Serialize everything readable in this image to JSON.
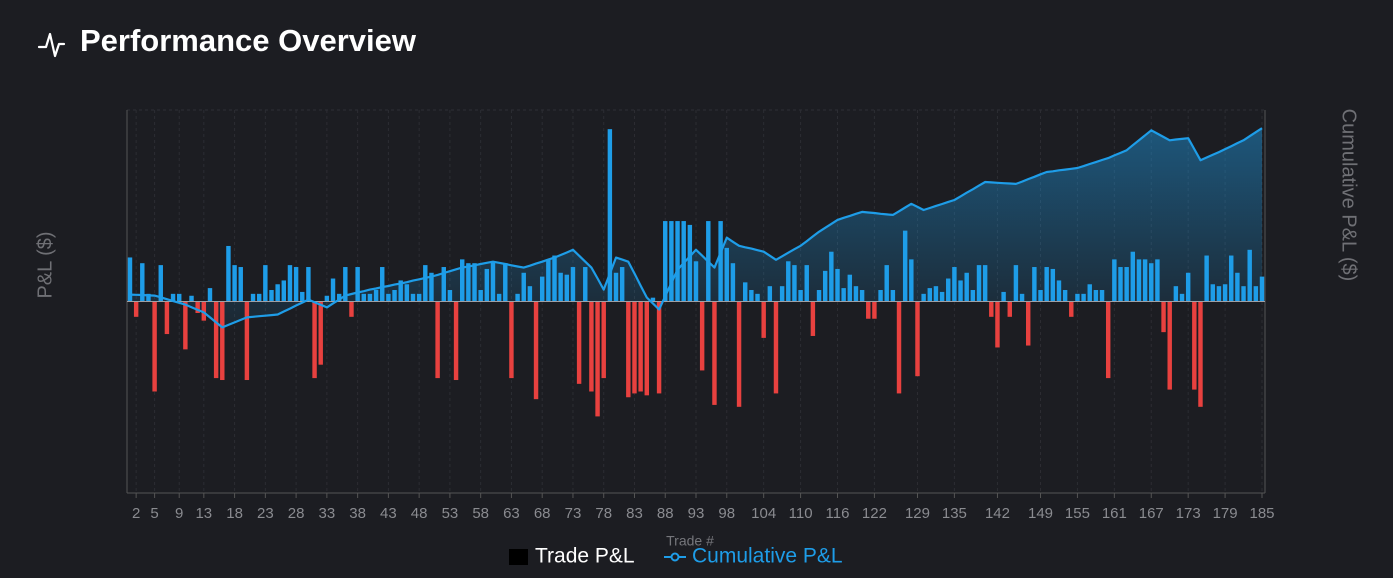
{
  "chart_data": {
    "type": "bar",
    "title": "Performance Overview",
    "x_label": "Trade #",
    "y_label": "P&L ($)",
    "y2_label": "Cumulative P&L ($)",
    "xlim": [
      1,
      185
    ],
    "xticks": [
      2,
      5,
      9,
      13,
      18,
      23,
      28,
      33,
      38,
      43,
      48,
      53,
      58,
      63,
      68,
      73,
      78,
      83,
      88,
      93,
      98,
      104,
      110,
      116,
      122,
      129,
      135,
      142,
      149,
      155,
      161,
      167,
      173,
      179,
      185
    ],
    "ylim": [
      -100,
      100
    ],
    "y2lim": [
      -1000,
      1000
    ],
    "grid": true,
    "x": [
      1,
      2,
      3,
      4,
      5,
      6,
      7,
      8,
      9,
      10,
      11,
      12,
      13,
      14,
      15,
      16,
      17,
      18,
      19,
      20,
      21,
      22,
      23,
      24,
      25,
      26,
      27,
      28,
      29,
      30,
      31,
      32,
      33,
      34,
      35,
      36,
      37,
      38,
      39,
      40,
      41,
      42,
      43,
      44,
      45,
      46,
      47,
      48,
      49,
      50,
      51,
      52,
      53,
      54,
      55,
      56,
      57,
      58,
      59,
      60,
      61,
      62,
      63,
      64,
      65,
      66,
      67,
      68,
      69,
      70,
      71,
      72,
      73,
      74,
      75,
      76,
      77,
      78,
      79,
      80,
      81,
      82,
      83,
      84,
      85,
      86,
      87,
      88,
      89,
      90,
      91,
      92,
      93,
      94,
      95,
      96,
      97,
      98,
      99,
      100,
      101,
      102,
      103,
      104,
      105,
      106,
      107,
      108,
      109,
      110,
      111,
      112,
      113,
      114,
      115,
      116,
      117,
      118,
      119,
      120,
      121,
      122,
      123,
      124,
      125,
      126,
      127,
      128,
      129,
      130,
      131,
      132,
      133,
      134,
      135,
      136,
      137,
      138,
      139,
      140,
      141,
      142,
      143,
      144,
      145,
      146,
      147,
      148,
      149,
      150,
      151,
      152,
      153,
      154,
      155,
      156,
      157,
      158,
      159,
      160,
      161,
      162,
      163,
      164,
      165,
      166,
      167,
      168,
      169,
      170,
      171,
      172,
      173,
      174,
      175,
      176,
      177,
      178,
      179,
      180,
      181,
      182,
      183,
      184,
      185
    ],
    "series": [
      {
        "name": "Trade P&L",
        "type": "bar",
        "colors": {
          "positive": "#1e9de8",
          "negative": "#e8413f"
        },
        "values": [
          23,
          -8,
          20,
          4,
          -47,
          19,
          -17,
          4,
          4,
          -25,
          3,
          -6,
          -10,
          7,
          -40,
          -41,
          29,
          19,
          18,
          -41,
          4,
          4,
          19,
          6,
          9,
          11,
          19,
          18,
          5,
          18,
          -40,
          -33,
          3,
          12,
          4,
          18,
          -8,
          18,
          4,
          4,
          6,
          18,
          4,
          6,
          11,
          9,
          4,
          4,
          19,
          15,
          -40,
          18,
          6,
          -41,
          22,
          20,
          20,
          6,
          17,
          21,
          4,
          20,
          -40,
          4,
          15,
          8,
          -51,
          13,
          22,
          24,
          15,
          14,
          18,
          -43,
          18,
          -47,
          -60,
          -40,
          90,
          15,
          18,
          -50,
          -48,
          -47,
          -49,
          2,
          -48,
          42,
          42,
          42,
          42,
          40,
          21,
          -36,
          42,
          -54,
          42,
          28,
          20,
          -55,
          10,
          6,
          4,
          -19,
          8,
          -48,
          8,
          21,
          19,
          6,
          19,
          -18,
          6,
          16,
          26,
          17,
          7,
          14,
          8,
          6,
          -9,
          -9,
          6,
          19,
          6,
          -48,
          37,
          22,
          -39,
          4,
          7,
          8,
          5,
          12,
          18,
          11,
          15,
          6,
          19,
          19,
          -8,
          -24,
          5,
          -8,
          19,
          4,
          -23,
          18,
          6,
          18,
          17,
          11,
          6,
          -8,
          4,
          4,
          9,
          6,
          6,
          -40,
          22,
          18,
          18,
          26,
          22,
          22,
          20,
          22,
          -16,
          -46,
          8,
          4,
          15,
          -46,
          -55,
          24,
          9,
          8,
          9,
          24,
          15,
          8,
          27,
          8,
          13
        ]
      },
      {
        "name": "Cumulative P&L",
        "type": "line",
        "axis": "y2",
        "color": "#1e9de8",
        "values": [
          36,
          35,
          34,
          32,
          31,
          22,
          12,
          2,
          -7,
          -16,
          -30,
          -44,
          -57,
          -83,
          -109,
          -135,
          -122,
          -109,
          -96,
          -83,
          -80,
          -77,
          -74,
          -71,
          -68,
          -52,
          -37,
          -21,
          -6,
          10,
          -4,
          -17,
          -31,
          -10,
          10,
          31,
          39,
          47,
          54,
          62,
          68,
          75,
          81,
          88,
          94,
          101,
          109,
          116,
          123,
          130,
          139,
          149,
          158,
          168,
          177,
          183,
          189,
          196,
          202,
          208,
          202,
          196,
          189,
          183,
          177,
          187,
          198,
          208,
          219,
          229,
          243,
          256,
          270,
          239,
          208,
          177,
          120,
          62,
          146,
          229,
          219,
          208,
          146,
          83,
          21,
          -10,
          -42,
          27,
          97,
          166,
          201,
          235,
          270,
          239,
          208,
          177,
          255,
          333,
          312,
          291,
          283,
          276,
          268,
          260,
          239,
          218,
          236,
          255,
          273,
          291,
          315,
          340,
          364,
          385,
          405,
          426,
          437,
          447,
          458,
          468,
          465,
          462,
          458,
          455,
          452,
          471,
          491,
          510,
          494,
          478,
          488,
          499,
          509,
          520,
          530,
          549,
          568,
          586,
          605,
          624,
          622,
          620,
          618,
          616,
          614,
          626,
          639,
          651,
          664,
          676,
          680,
          685,
          689,
          693,
          697,
          707,
          718,
          728,
          739,
          749,
          763,
          776,
          790,
          816,
          842,
          868,
          894,
          877,
          859,
          842,
          846,
          849,
          853,
          796,
          738,
          752,
          766,
          780,
          796,
          811,
          827,
          842,
          863,
          884,
          905
        ]
      }
    ]
  }
}
